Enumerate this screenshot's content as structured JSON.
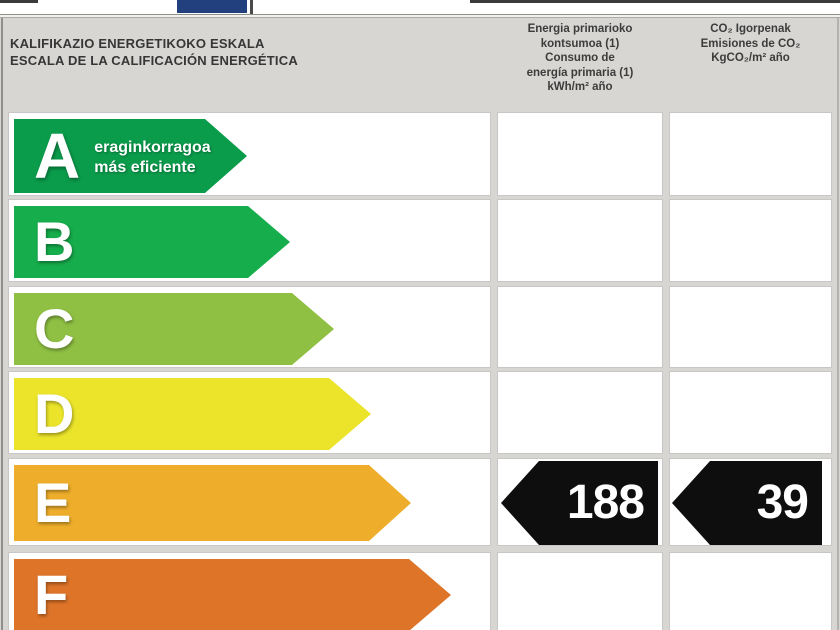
{
  "colors": {
    "background_grey": "#d7d6d3",
    "cell_white": "#ffffff",
    "cell_border": "#c8c7c5",
    "header_text": "#3c3c3c",
    "indicator_black": "#0e0e0e",
    "clipped_blue_box": "#23407e",
    "rating_a": "#0a9b4b",
    "rating_b": "#16ad4c",
    "rating_c": "#8fc043",
    "rating_d": "#ebe42a",
    "rating_e": "#eeae2b",
    "rating_f": "#de7428"
  },
  "header": {
    "scale_title_eu": "KALIFIKAZIO ENERGETIKOKO ESKALA",
    "scale_title_es": "ESCALA DE LA CALIFICACIÓN ENERGÉTICA",
    "energy_column": {
      "line1": "Energia primarioko",
      "line2": "kontsumoa (1)",
      "line3": "Consumo de",
      "line4": "energía primaria (1)",
      "line5": "kWh/m² año"
    },
    "co2_column": {
      "line1": "CO₂ Igorpenak",
      "line2": "Emisiones de CO₂",
      "line3": "KgCO₂/m² año"
    }
  },
  "ratings": [
    {
      "letter": "A",
      "color": "#0a9b4b",
      "arrow_width": 233,
      "sublabel_eu": "eraginkorragoa",
      "sublabel_es": "más eficiente"
    },
    {
      "letter": "B",
      "color": "#16ad4c",
      "arrow_width": 276
    },
    {
      "letter": "C",
      "color": "#8fc043",
      "arrow_width": 320
    },
    {
      "letter": "D",
      "color": "#ebe42a",
      "arrow_width": 357
    },
    {
      "letter": "E",
      "color": "#eeae2b",
      "arrow_width": 397
    },
    {
      "letter": "F",
      "color": "#de7428",
      "arrow_width": 437
    }
  ],
  "indicators": {
    "rated_letter": "E",
    "energy_value": "188",
    "co2_value": "39"
  },
  "chart_data": {
    "type": "table",
    "title": "KALIFIKAZIO ENERGETIKOKO ESKALA / ESCALA DE LA CALIFICACIÓN ENERGÉTICA",
    "categories": [
      "A",
      "B",
      "C",
      "D",
      "E",
      "F"
    ],
    "category_note_A": "eraginkorragoa / más eficiente",
    "columns": [
      "Energia primarioko kontsumoa (1) / Consumo de energía primaria (1) kWh/m² año",
      "CO₂ Igorpenak / Emisiones de CO₂ KgCO₂/m² año"
    ],
    "rated_class": "E",
    "values": {
      "energy_primary_kwh_m2_year": 188,
      "co2_emissions_kg_m2_year": 39
    },
    "legend_position": "none",
    "grid": "table-cells"
  }
}
